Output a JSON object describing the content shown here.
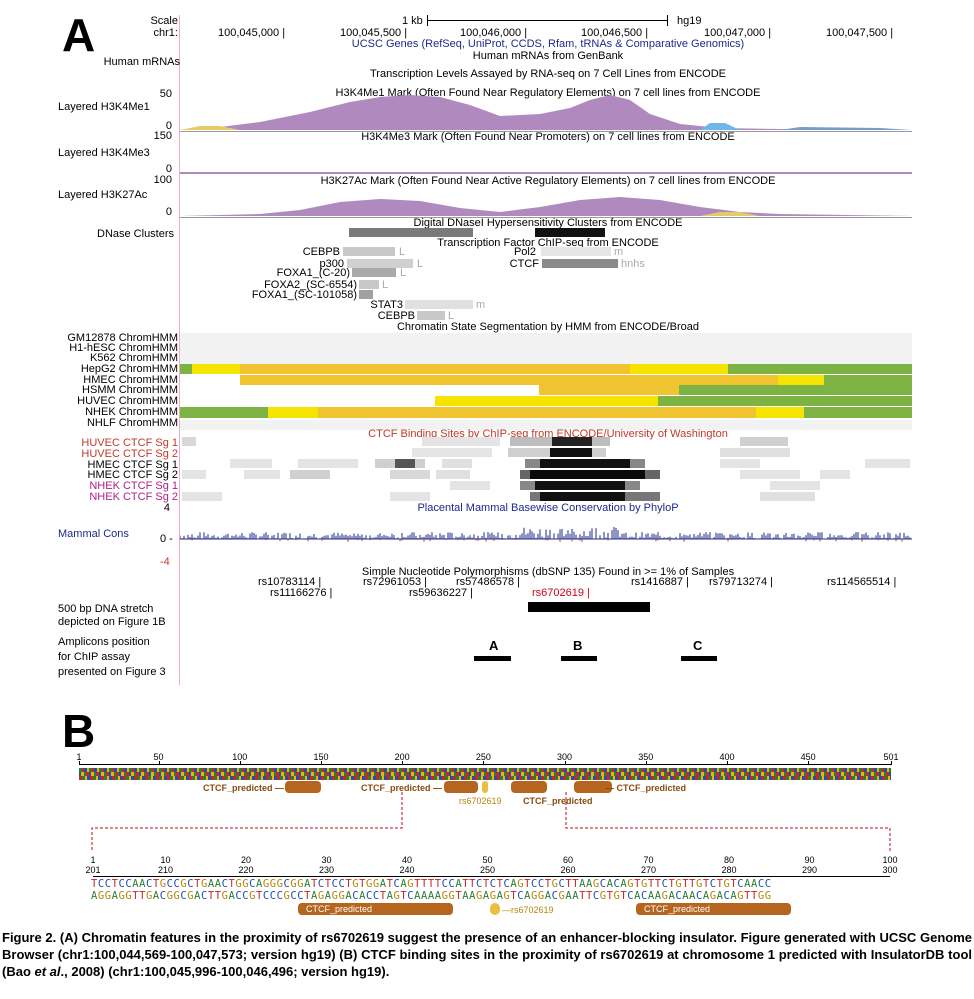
{
  "panelA": {
    "letter": "A",
    "scale_label": "Scale",
    "scale_value": "1 kb",
    "assembly": "hg19",
    "chrom_label": "chr1:",
    "positions": [
      "100,045,000",
      "100,045,500",
      "100,046,000",
      "100,046,500",
      "100,047,000",
      "100,047,500"
    ],
    "ucsc_genes_title": "UCSC Genes (RefSeq, UniProt, CCDS, Rfam, tRNAs & Comparative Genomics)",
    "mrna_title": "Human mRNAs from GenBank",
    "mrna_label": "Human mRNAs",
    "rnaseq_title": "Transcription Levels Assayed by RNA-seq on 7 Cell Lines from ENCODE",
    "h3k4me1": {
      "label": "Layered H3K4Me1",
      "title": "H3K4Me1 Mark (Often Found Near Regulatory Elements) on 7 cell lines from ENCODE",
      "max": "50",
      "min": "0"
    },
    "h3k4me3": {
      "label": "Layered H3K4Me3",
      "title": "H3K4Me3 Mark (Often Found Near Promoters) on 7 cell lines from ENCODE",
      "max": "150",
      "min": "0"
    },
    "h3k27ac": {
      "label": "Layered H3K27Ac",
      "title": "H3K27Ac Mark (Often Found Near Active Regulatory Elements) on 7 cell lines from ENCODE",
      "max": "100",
      "min": "0"
    },
    "dnase": {
      "label": "DNase Clusters",
      "title": "Digital DNaseI Hypersensitivity Clusters from ENCODE"
    },
    "tfbs": {
      "title": "Transcription Factor ChIP-seq from ENCODE",
      "factors": [
        "CEBPB",
        "p300",
        "FOXA1_(C-20)",
        "FOXA2_(SC-6554)",
        "FOXA1_(SC-101058)",
        "STAT3",
        "CEBPB",
        "Pol2",
        "CTCF"
      ],
      "suffixes": [
        "L",
        "L",
        "L",
        "L",
        "m",
        "L",
        "m",
        "hnhs"
      ]
    },
    "chromhmm": {
      "title": "Chromatin State Segmentation by HMM from ENCODE/Broad",
      "rows": [
        "GM12878 ChromHMM",
        "H1-hESC ChromHMM",
        "K562 ChromHMM",
        "HepG2 ChromHMM",
        "HMEC ChromHMM",
        "HSMM ChromHMM",
        "HUVEC ChromHMM",
        "NHEK ChromHMM",
        "NHLF ChromHMM"
      ]
    },
    "ctcf_uw": {
      "title": "CTCF Binding Sites by ChIP-seq from ENCODE/University of Washington",
      "rows": [
        "HUVEC CTCF Sg 1",
        "HUVEC CTCF Sg 2",
        "HMEC CTCF Sg 1",
        "HMEC CTCF Sg 2",
        "NHEK CTCF Sg 1",
        "NHEK CTCF Sg 2"
      ],
      "row_colors": [
        "#c0392b",
        "#c0392b",
        "#000000",
        "#000000",
        "#b0208a",
        "#b0208a"
      ]
    },
    "cons": {
      "label": "Mammal Cons",
      "title": "Placental Mammal Basewise Conservation by PhyloP",
      "max": "4",
      "zero": "0 -",
      "min": "-4"
    },
    "snp": {
      "title": "Simple Nucleotide Polymorphisms (dbSNP 135) Found in >= 1% of Samples",
      "row1": [
        "rs10783114",
        "rs72961053",
        "rs57486578",
        "rs1416887",
        "rs79713274",
        "rs114565514"
      ],
      "row2": [
        "rs11166276",
        "rs59636227",
        "rs6702619"
      ],
      "highlight": "rs6702619",
      "highlight_color": "#d0021b"
    },
    "stretch_label": [
      "500 bp DNA stretch",
      "depicted on Figure 1B"
    ],
    "amplicon_label": [
      "Amplicons position",
      "for ChIP assay",
      "presented on Figure 3"
    ],
    "amplicons": [
      "A",
      "B",
      "C"
    ]
  },
  "panelB": {
    "letter": "B",
    "ruler_top": [
      "1",
      "50",
      "100",
      "150",
      "200",
      "250",
      "300",
      "350",
      "400",
      "450",
      "501"
    ],
    "top_sites": [
      "CTCF_predicted",
      "CTCF_predicted",
      "CTCF_predicted",
      "CTCF_predicted"
    ],
    "snp_label": "rs6702619",
    "ruler_bottom_rel": [
      "1",
      "10",
      "20",
      "30",
      "40",
      "50",
      "60",
      "70",
      "80",
      "90",
      "100"
    ],
    "ruler_bottom_abs": [
      "201",
      "210",
      "220",
      "230",
      "240",
      "250",
      "260",
      "270",
      "280",
      "290",
      "300"
    ],
    "seq_top": "TCCTCCAACTGCCGCTGAACTGGCAGGGCGGATCTCCTGTGGATCAGTTTTCCATTCTCTCAGTCCTGCTTAAGCACAGTGTTCTGTTGTCTGTCAACC",
    "seq_bottom": "AGGAGGTTGACGGCGACTTGACCGTCCCGCCTAGAGGACACCTAGTCAAAAGGTAAGAGAGTCAGGACGAATTCGTGTCACAAGACAACAGACAGTTGG",
    "bottom_sites": [
      "CTCF_predicted",
      "CTCF_predicted"
    ],
    "base_colors": {
      "A": "#2e7d32",
      "C": "#1f4fb0",
      "G": "#b7860b",
      "T": "#c62828"
    },
    "site_color": "#b5651d"
  },
  "caption": {
    "lead": "Figure 2. (A) Chromatin features in the proximity of rs6702619 suggest the presence of an enhancer-blocking insulator. Figure generated with UCSC Genome Browser (chr1:100,044,569-100,047,573; version hg19) (B) CTCF binding sites in the proximity of rs6702619 at chromosome 1 predicted with InsulatorDB tool (Bao ",
    "italic": "et al",
    "tail": "., 2008) (chr1:100,045,996-100,046,496; version hg19)."
  }
}
